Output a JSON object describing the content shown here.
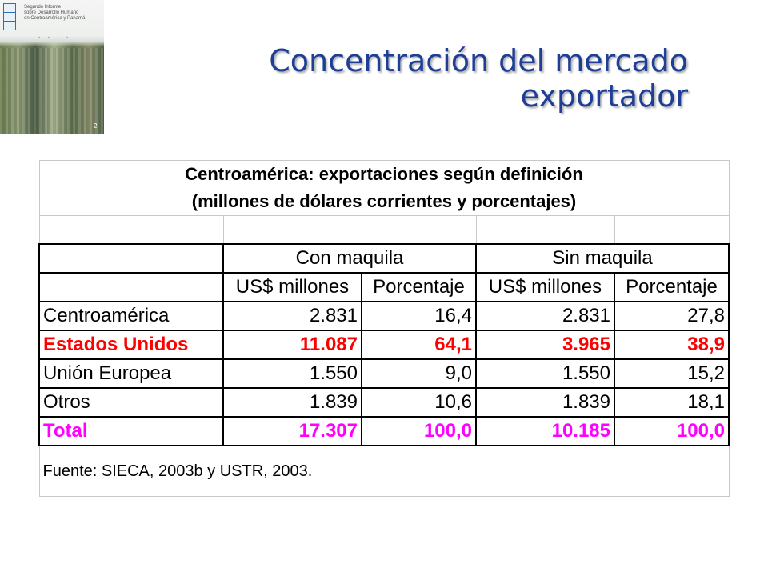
{
  "cover": {
    "lines": [
      "Segundo Informe",
      "sobre Desarrollo Humano",
      "en Centroamérica y Panamá"
    ],
    "page_number": "2"
  },
  "slide": {
    "title_line1": "Concentración del mercado",
    "title_line2": "exportador"
  },
  "table": {
    "title_line1": "Centroamérica: exportaciones según definición",
    "title_line2": "(millones de dólares corrientes y porcentajes)",
    "group_headers": [
      "Con  maquila",
      "Sin   maquila"
    ],
    "sub_headers": [
      "US$ millones",
      "Porcentaje",
      "US$ millones",
      "Porcentaje"
    ],
    "rows": [
      {
        "label": "Centroamérica",
        "values": [
          "2.831",
          "16,4",
          "2.831",
          "27,8"
        ]
      },
      {
        "label": "Estados Unidos",
        "values": [
          "11.087",
          "64,1",
          "3.965",
          "38,9"
        ]
      },
      {
        "label": "Unión  Europea",
        "values": [
          "1.550",
          "9,0",
          "1.550",
          "15,2"
        ]
      },
      {
        "label": "Otros",
        "values": [
          "1.839",
          "10,6",
          "1.839",
          "18,1"
        ]
      },
      {
        "label": "Total",
        "values": [
          "17.307",
          "100,0",
          "10.185",
          "100,0"
        ]
      }
    ],
    "source": "Fuente: SIECA, 2003b y USTR, 2003."
  },
  "colors": {
    "title": "#1f3f96",
    "highlight_row": "#ff0000",
    "total_row": "#ff00ff"
  }
}
